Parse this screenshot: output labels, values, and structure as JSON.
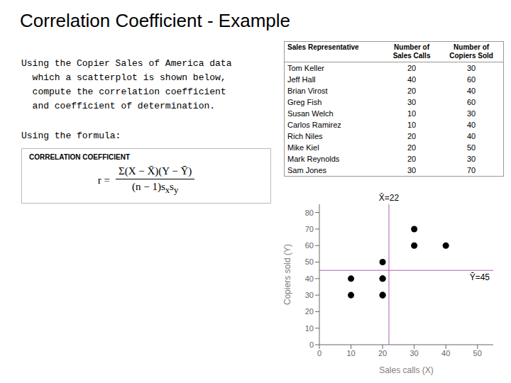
{
  "chart_data": {
    "type": "scatter",
    "title": "Correlation Coefficient - Example",
    "text_lines": [
      "Using the Copier Sales of America data",
      "  which a scatterplot is shown below,",
      "  compute the correlation coefficient",
      "  and coefficient of determination."
    ],
    "formula_label": "Using the formula:",
    "formula_title": "CORRELATION COEFFICIENT",
    "formula": {
      "lhs": "r =",
      "numerator": "Σ(X − X̄)(Y − Ȳ)",
      "denominator": [
        {
          "text": "(n − 1)s",
          "sub": "x"
        },
        {
          "text": "s",
          "sub": "y"
        }
      ]
    },
    "table": {
      "headers": [
        "Sales Representative",
        "Number of\nSales Calls",
        "Number of\nCopiers Sold"
      ],
      "rows": [
        [
          "Tom Keller",
          "20",
          "30"
        ],
        [
          "Jeff Hall",
          "40",
          "60"
        ],
        [
          "Brian Virost",
          "20",
          "40"
        ],
        [
          "Greg Fish",
          "30",
          "60"
        ],
        [
          "Susan Welch",
          "10",
          "30"
        ],
        [
          "Carlos Ramirez",
          "10",
          "40"
        ],
        [
          "Rich Niles",
          "20",
          "40"
        ],
        [
          "Mike Kiel",
          "20",
          "50"
        ],
        [
          "Mark Reynolds",
          "20",
          "30"
        ],
        [
          "Sam Jones",
          "30",
          "70"
        ]
      ]
    },
    "x_label": "Sales calls (X)",
    "y_label": "Copiers sold (Y)",
    "x": [
      20,
      40,
      20,
      30,
      10,
      10,
      20,
      20,
      20,
      30
    ],
    "values": [
      30,
      60,
      40,
      60,
      30,
      40,
      40,
      50,
      30,
      70
    ],
    "color": "#000000",
    "xlim": [
      0,
      55
    ],
    "xticks": [
      0,
      10,
      20,
      30,
      40,
      50
    ],
    "ylim": [
      0,
      85
    ],
    "yticks": [
      0,
      10,
      20,
      30,
      40,
      50,
      60,
      70,
      80
    ],
    "grid": false,
    "mean_lines": [
      {
        "axis": "x",
        "value": 22,
        "label": "X̄=22",
        "color": "#b060b0"
      },
      {
        "axis": "y",
        "value": 45,
        "label": "Ȳ=45",
        "color": "#b060b0"
      }
    ]
  }
}
